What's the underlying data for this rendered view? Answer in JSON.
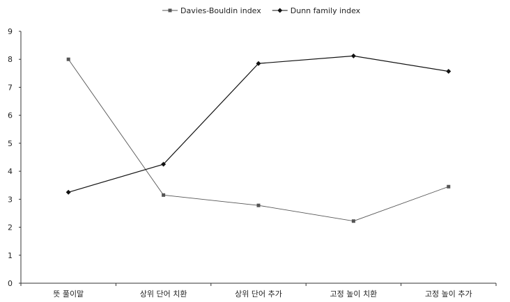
{
  "chart_data": {
    "type": "line",
    "title": "",
    "xlabel": "",
    "ylabel": "",
    "categories": [
      "뜻 풀이말",
      "상위 단어 치환",
      "상위 단어 추가",
      "고정 높이 치환",
      "고정 높이 추가"
    ],
    "ylim": [
      0,
      9
    ],
    "yticks": [
      0,
      1,
      2,
      3,
      4,
      5,
      6,
      7,
      8,
      9
    ],
    "grid": false,
    "legend_position": "top-center",
    "series": [
      {
        "name": "Davies-Bouldin index",
        "marker": "square",
        "color": "#555555",
        "values": [
          8.0,
          3.15,
          2.78,
          2.22,
          3.45
        ]
      },
      {
        "name": "Dunn family index",
        "marker": "diamond",
        "color": "#111111",
        "values": [
          3.25,
          4.25,
          7.85,
          8.12,
          7.57
        ]
      }
    ]
  }
}
